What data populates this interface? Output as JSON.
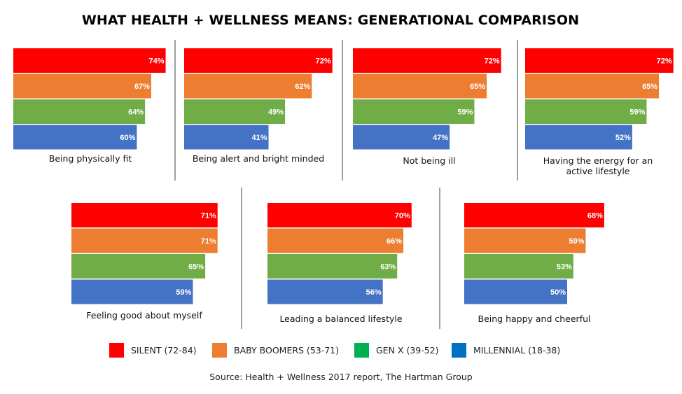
{
  "title": "WHAT HEALTH + WELLNESS MEANS: GENERATIONAL COMPARISON",
  "source": "Source: Health + Wellness 2017 report, The Hartman Group",
  "colors": {
    "silent": "#ff0000",
    "baby_boomers": "#ed7d31",
    "gen_x": "#70ad47",
    "millennial": "#4472c4",
    "legend_gen_x": "#00b050",
    "legend_millennial": "#0070c0",
    "divider": "#808080"
  },
  "legend": [
    {
      "label": "SILENT (72-84)",
      "color": "#ff0000"
    },
    {
      "label": "BABY BOOMERS (53-71)",
      "color": "#ed7d31"
    },
    {
      "label": "GEN X (39-52)",
      "color": "#00b050"
    },
    {
      "label": "MILLENNIAL (18-38)",
      "color": "#0070c0"
    }
  ],
  "chart_data": [
    {
      "type": "bar",
      "orientation": "horizontal",
      "title": "Being physically fit",
      "categories": [
        "SILENT (72-84)",
        "BABY BOOMERS (53-71)",
        "GEN X (39-52)",
        "MILLENNIAL (18-38)"
      ],
      "values": [
        74,
        67,
        64,
        60
      ],
      "value_labels": [
        "74%",
        "67%",
        "64%",
        "60%"
      ],
      "xlim": [
        0,
        100
      ]
    },
    {
      "type": "bar",
      "orientation": "horizontal",
      "title": "Being alert and bright minded",
      "categories": [
        "SILENT (72-84)",
        "BABY BOOMERS (53-71)",
        "GEN X (39-52)",
        "MILLENNIAL (18-38)"
      ],
      "values": [
        72,
        62,
        49,
        41
      ],
      "value_labels": [
        "72%",
        "62%",
        "49%",
        "41%"
      ],
      "xlim": [
        0,
        100
      ]
    },
    {
      "type": "bar",
      "orientation": "horizontal",
      "title": "Not being ill",
      "categories": [
        "SILENT (72-84)",
        "BABY BOOMERS (53-71)",
        "GEN X (39-52)",
        "MILLENNIAL (18-38)"
      ],
      "values": [
        72,
        65,
        59,
        47
      ],
      "value_labels": [
        "72%",
        "65%",
        "59%",
        "47%"
      ],
      "xlim": [
        0,
        100
      ]
    },
    {
      "type": "bar",
      "orientation": "horizontal",
      "title": "Having the energy for an active lifestyle",
      "title_lines": [
        "Having the energy for an",
        "active lifestyle"
      ],
      "categories": [
        "SILENT (72-84)",
        "BABY BOOMERS (53-71)",
        "GEN X (39-52)",
        "MILLENNIAL (18-38)"
      ],
      "values": [
        72,
        65,
        59,
        52
      ],
      "value_labels": [
        "72%",
        "65%",
        "59%",
        "52%"
      ],
      "xlim": [
        0,
        100
      ]
    },
    {
      "type": "bar",
      "orientation": "horizontal",
      "title": "Feeling good about myself",
      "categories": [
        "SILENT (72-84)",
        "BABY BOOMERS (53-71)",
        "GEN X (39-52)",
        "MILLENNIAL (18-38)"
      ],
      "values": [
        71,
        71,
        65,
        59
      ],
      "value_labels": [
        "71%",
        "71%",
        "65%",
        "59%"
      ],
      "xlim": [
        0,
        100
      ]
    },
    {
      "type": "bar",
      "orientation": "horizontal",
      "title": "Leading a balanced lifestyle",
      "categories": [
        "SILENT (72-84)",
        "BABY BOOMERS (53-71)",
        "GEN X (39-52)",
        "MILLENNIAL (18-38)"
      ],
      "values": [
        70,
        66,
        63,
        56
      ],
      "value_labels": [
        "70%",
        "66%",
        "63%",
        "56%"
      ],
      "xlim": [
        0,
        100
      ]
    },
    {
      "type": "bar",
      "orientation": "horizontal",
      "title": "Being happy and cheerful",
      "categories": [
        "SILENT (72-84)",
        "BABY BOOMERS (53-71)",
        "GEN X (39-52)",
        "MILLENNIAL (18-38)"
      ],
      "values": [
        68,
        59,
        53,
        50
      ],
      "value_labels": [
        "68%",
        "59%",
        "53%",
        "50%"
      ],
      "xlim": [
        0,
        100
      ]
    }
  ]
}
